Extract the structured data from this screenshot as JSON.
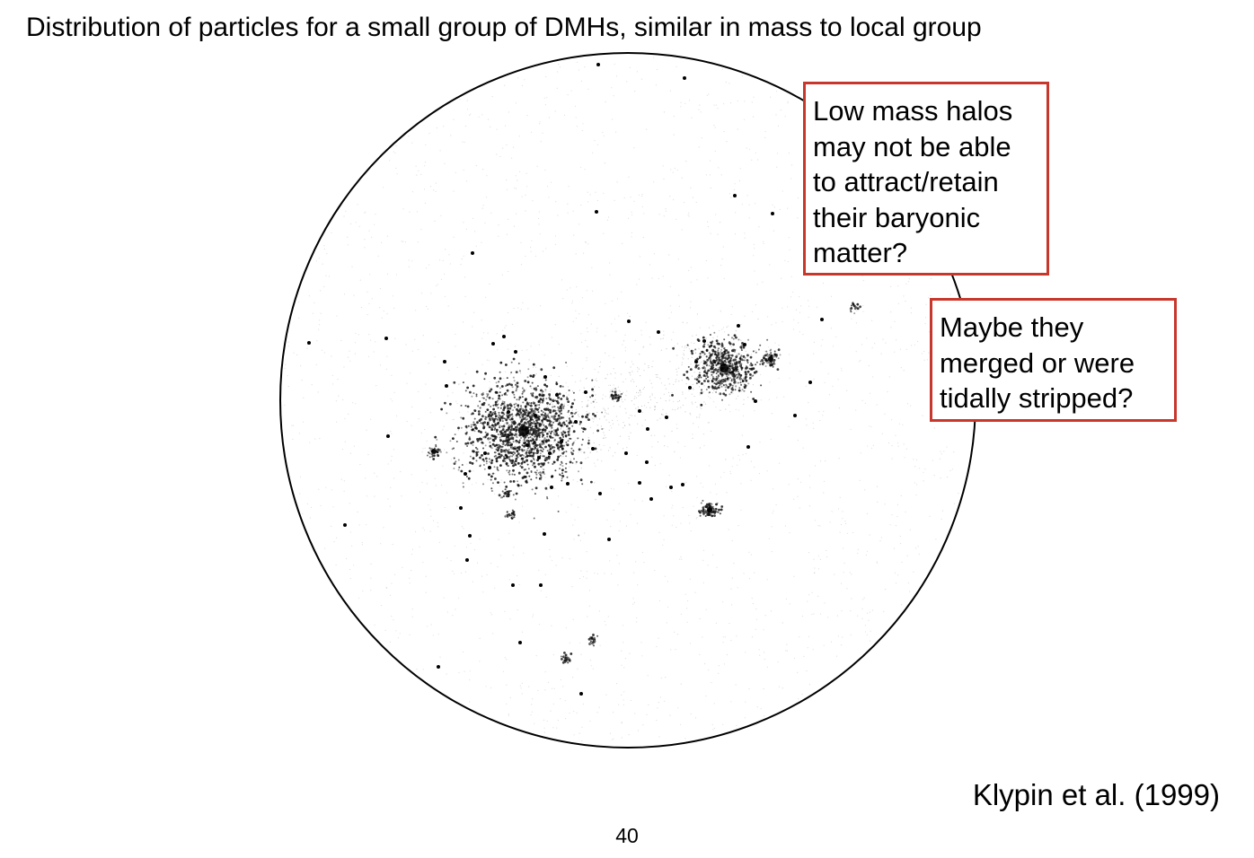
{
  "slide": {
    "title": "Distribution of particles for a small group of DMHs, similar in mass to local group",
    "citation": "Klypin et al. (1999)",
    "page_number": "40"
  },
  "callouts": {
    "low_mass": {
      "lines": [
        "Low mass halos",
        "may not be able",
        "to attract/retain",
        "their baryonic",
        "matter?"
      ]
    },
    "merged": {
      "lines": [
        "Maybe they",
        "merged or were",
        "tidally stripped?"
      ]
    }
  },
  "colors": {
    "callout_border": "#c8372c",
    "particles": "#000000",
    "boundary": "#000000"
  }
}
